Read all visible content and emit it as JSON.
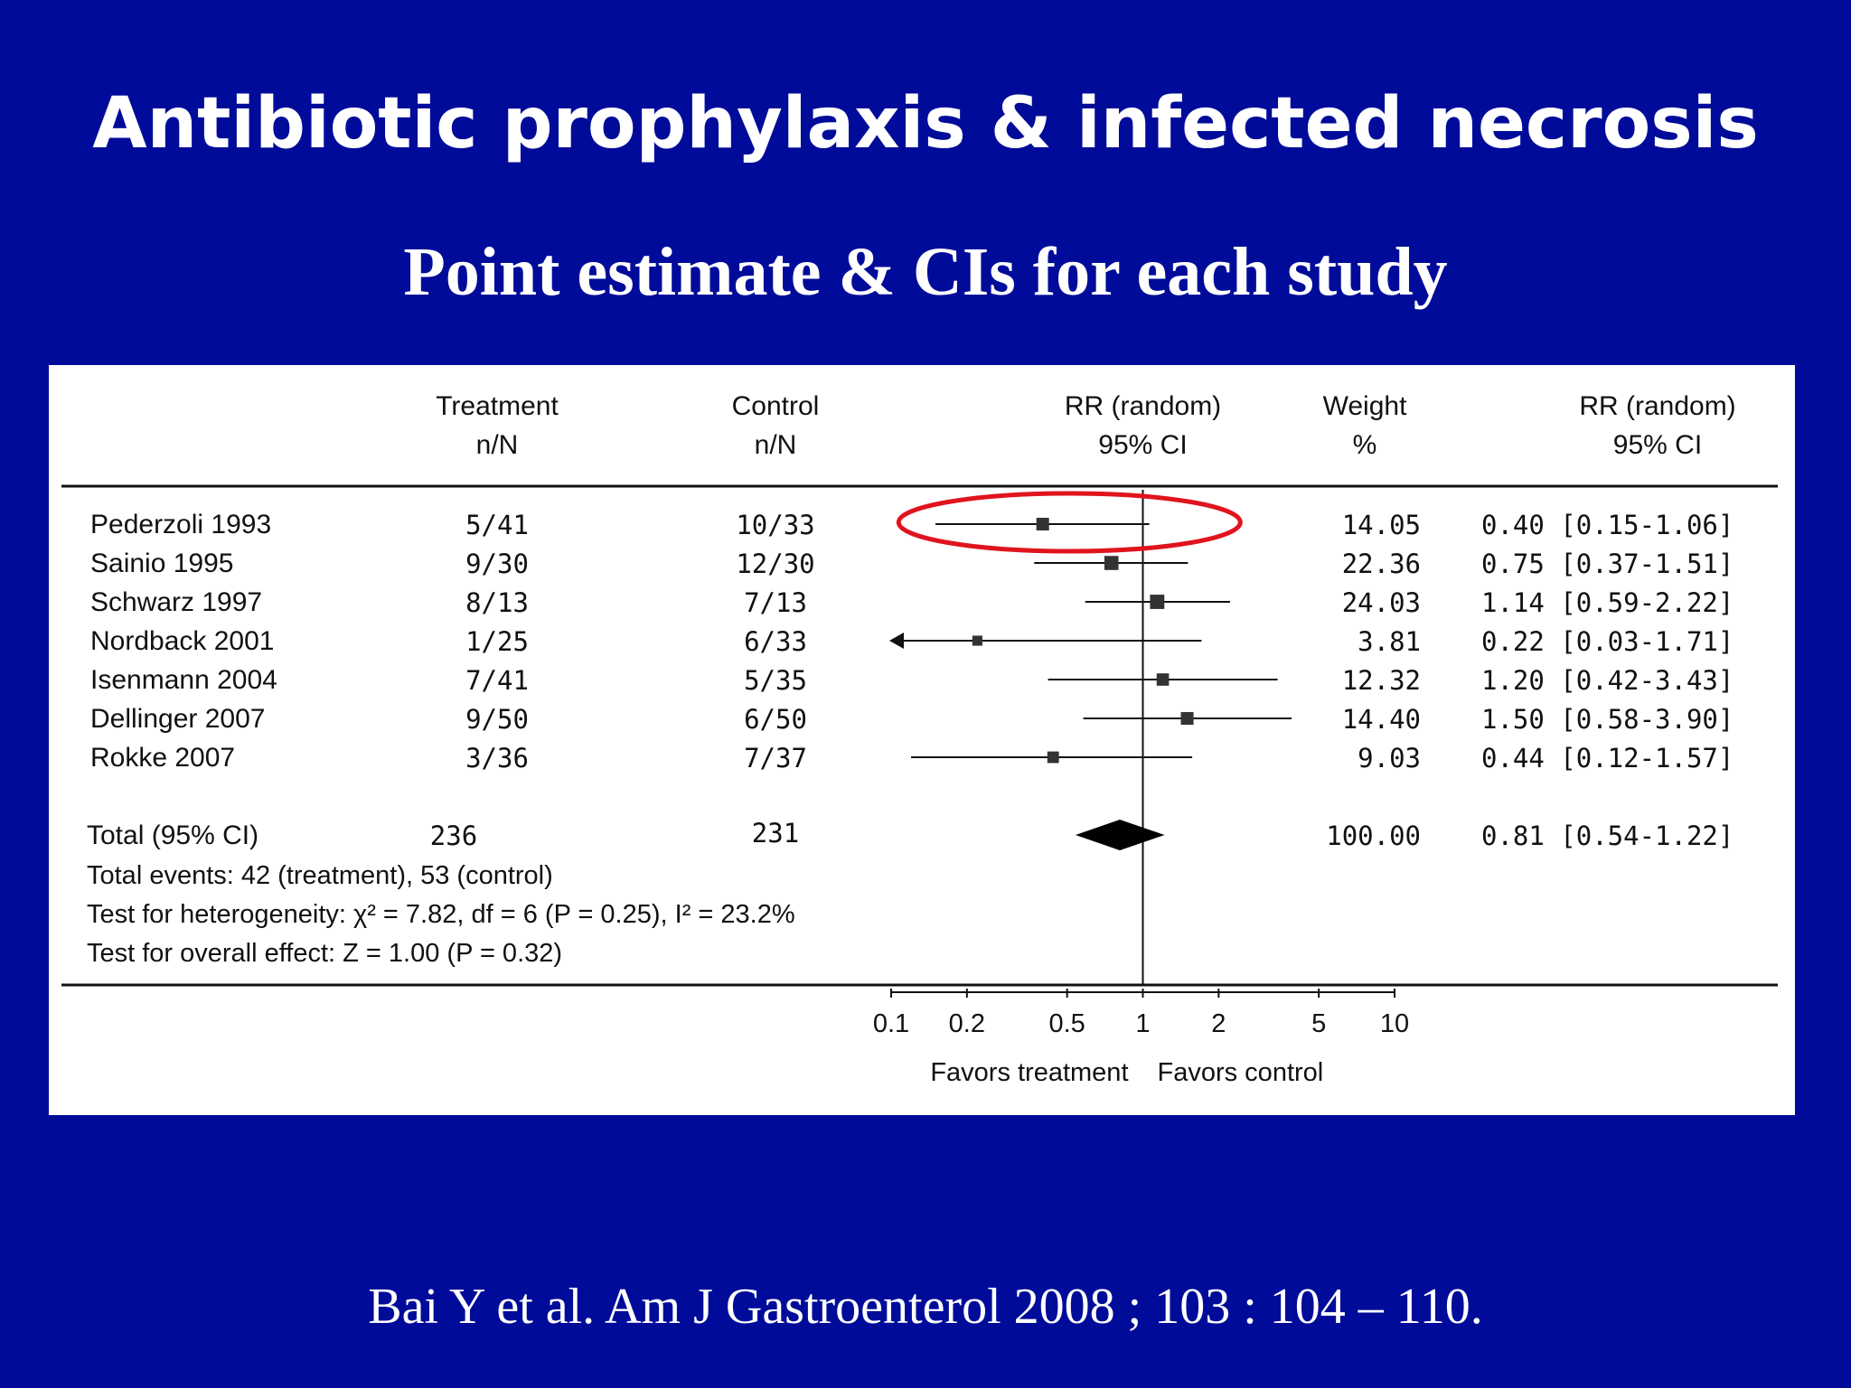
{
  "slide": {
    "title": "Antibiotic prophylaxis & infected necrosis",
    "subtitle": "Point estimate & CIs for each study",
    "citation": "Bai Y et al. Am J Gastroenterol 2008 ; 103 : 104 – 110."
  },
  "colors": {
    "background": "#000c99",
    "highlight": "#e0141e",
    "ink": "#111111"
  },
  "chart_data": {
    "type": "forest",
    "headers": {
      "treatment": [
        "Treatment",
        "n/N"
      ],
      "control": [
        "Control",
        "n/N"
      ],
      "plot": [
        "RR (random)",
        "95% CI"
      ],
      "weight": [
        "Weight",
        "%"
      ],
      "rr": [
        "RR (random)",
        "95% CI"
      ]
    },
    "studies": [
      {
        "name": "Pederzoli 1993",
        "treatment": "5/41",
        "control": "10/33",
        "weight": "14.05",
        "rr_text": "0.40 [0.15-1.06]",
        "rr": 0.4,
        "lo": 0.15,
        "hi": 1.06,
        "highlighted": true
      },
      {
        "name": "Sainio 1995",
        "treatment": "9/30",
        "control": "12/30",
        "weight": "22.36",
        "rr_text": "0.75 [0.37-1.51]",
        "rr": 0.75,
        "lo": 0.37,
        "hi": 1.51
      },
      {
        "name": "Schwarz 1997",
        "treatment": "8/13",
        "control": "7/13",
        "weight": "24.03",
        "rr_text": "1.14 [0.59-2.22]",
        "rr": 1.14,
        "lo": 0.59,
        "hi": 2.22
      },
      {
        "name": "Nordback 2001",
        "treatment": "1/25",
        "control": "6/33",
        "weight": "3.81",
        "rr_text": "0.22 [0.03-1.71]",
        "rr": 0.22,
        "lo": 0.03,
        "hi": 1.71,
        "clipped_low": true
      },
      {
        "name": "Isenmann 2004",
        "treatment": "7/41",
        "control": "5/35",
        "weight": "12.32",
        "rr_text": "1.20 [0.42-3.43]",
        "rr": 1.2,
        "lo": 0.42,
        "hi": 3.43
      },
      {
        "name": "Dellinger 2007",
        "treatment": "9/50",
        "control": "6/50",
        "weight": "14.40",
        "rr_text": "1.50 [0.58-3.90]",
        "rr": 1.5,
        "lo": 0.58,
        "hi": 3.9
      },
      {
        "name": "Rokke 2007",
        "treatment": "3/36",
        "control": "7/37",
        "weight": "9.03",
        "rr_text": "0.44 [0.12-1.57]",
        "rr": 0.44,
        "lo": 0.12,
        "hi": 1.57
      }
    ],
    "total": {
      "name": "Total (95% CI)",
      "treatment": "236",
      "control": "231",
      "weight": "100.00",
      "rr_text": "0.81 [0.54-1.22]",
      "rr": 0.81,
      "lo": 0.54,
      "hi": 1.22
    },
    "stats": [
      "Total events: 42 (treatment), 53 (control)",
      "Test for heterogeneity: χ² = 7.82, df = 6 (P = 0.25), I² = 23.2%",
      "Test for overall effect: Z = 1.00 (P = 0.32)"
    ],
    "x_scale": "log",
    "xlim": [
      0.1,
      10
    ],
    "ticks": [
      0.1,
      0.2,
      0.5,
      1,
      2,
      5,
      10
    ],
    "tick_labels": [
      "0.1",
      "0.2",
      "0.5",
      "1",
      "2",
      "5",
      "10"
    ],
    "favors_left": "Favors treatment",
    "favors_right": "Favors control"
  }
}
